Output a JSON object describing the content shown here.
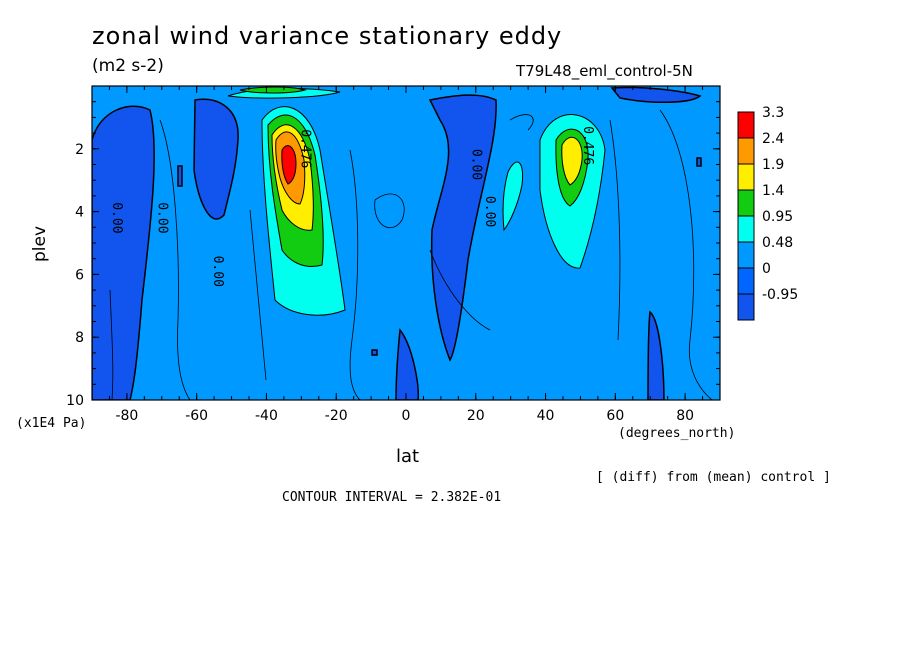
{
  "chart_data": {
    "type": "heatmap",
    "title": "zonal wind variance stationary eddy",
    "units": "(m2 s-2)",
    "run_label": "T79L48_eml_control-5N",
    "xlabel": "lat",
    "ylabel": "plev",
    "x_units": "(degrees_north)",
    "y_units": "(x1E4 Pa)",
    "xlim": [
      -90,
      90
    ],
    "ylim": [
      10,
      0
    ],
    "x_ticks": [
      "-80",
      "-60",
      "-40",
      "-20",
      "0",
      "20",
      "40",
      "60",
      "80"
    ],
    "x_tick_values": [
      -80,
      -60,
      -40,
      -20,
      0,
      20,
      40,
      60,
      80
    ],
    "y_ticks": [
      "2",
      "4",
      "6",
      "8",
      "10"
    ],
    "y_tick_values": [
      2,
      4,
      6,
      8,
      10
    ],
    "colorbar": {
      "labels": [
        "3.3",
        "2.4",
        "1.9",
        "1.4",
        "0.95",
        "0.48",
        "0",
        "-0.95"
      ],
      "colors": [
        "#ff0000",
        "#ff9900",
        "#ffee00",
        "#11cc11",
        "#00ffee",
        "#0099ff",
        "#0066ff",
        "#1155ee"
      ]
    },
    "background_color": "#0099ff",
    "contour_labels": [
      {
        "text": "0.00",
        "lat": -83,
        "plev": 4.2
      },
      {
        "text": "0.00",
        "lat": -70,
        "plev": 4.2
      },
      {
        "text": "0.00",
        "lat": -54,
        "plev": 5.9
      },
      {
        "text": "0.476",
        "lat": -29,
        "plev": 2.0
      },
      {
        "text": "0.00",
        "lat": 20,
        "plev": 2.5
      },
      {
        "text": "0.00",
        "lat": 24,
        "plev": 4.0
      },
      {
        "text": "0.476",
        "lat": 52,
        "plev": 1.9
      }
    ],
    "maxima": [
      {
        "lat": -33,
        "plev": 2.6,
        "value": 3.3
      },
      {
        "lat": 47,
        "plev": 2.5,
        "value": 1.9
      }
    ],
    "contour_interval_text": "CONTOUR INTERVAL = 2.382E-01",
    "diff_note": "[ (diff) from (mean) control ]"
  }
}
